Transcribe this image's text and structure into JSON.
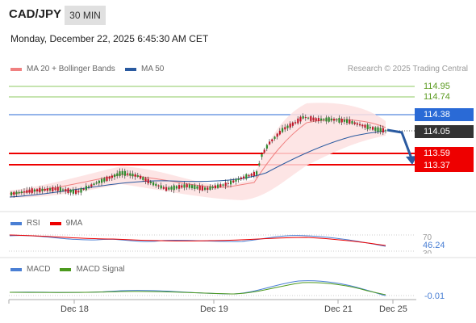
{
  "header": {
    "pair": "CAD/JPY",
    "timeframe": "30 MIN"
  },
  "datetime": "Monday, December 22, 2025 6:45:30 AM CET",
  "legend": {
    "ma20": {
      "label": "MA 20 + Bollinger Bands",
      "color": "#f08080"
    },
    "ma50": {
      "label": "MA 50",
      "color": "#2a5aa0"
    }
  },
  "credit": "Research © 2025 Trading Central",
  "levels": {
    "r3": "114.95",
    "r2": "114.74",
    "r1": "114.38",
    "last": "114.05",
    "s1": "113.59",
    "s2": "113.37"
  },
  "rsi": {
    "label": "RSI",
    "ma_label": "9MA",
    "level_high": "70",
    "value": "46.24",
    "level_low": "30",
    "color": "#4a7fd4",
    "ma_color": "#e00"
  },
  "macd": {
    "label": "MACD",
    "signal_label": "MACD Signal",
    "value": "-0.01",
    "color": "#4a7fd4",
    "signal_color": "#4c9a1e"
  },
  "xaxis": [
    "Dec 18",
    "Dec 19",
    "Dec 21",
    "Dec 25"
  ],
  "colors": {
    "support": "#e00",
    "resistance_light": "#7cc04a",
    "resistance_blue": "#2a6ad6",
    "band": "#fde0e0"
  }
}
